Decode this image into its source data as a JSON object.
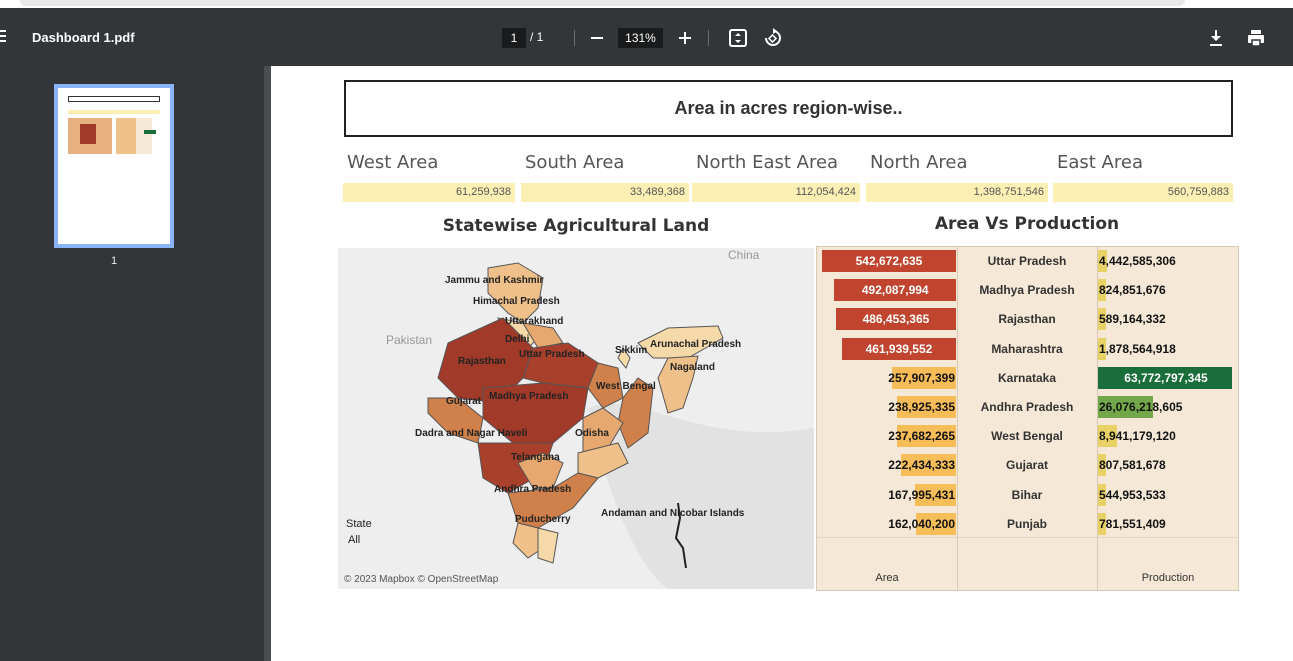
{
  "toolbar": {
    "title": "Dashboard 1.pdf",
    "page_current": "1",
    "page_total": "/  1",
    "zoom": "131%",
    "zoom_out_icon": "minus-icon",
    "zoom_in_icon": "plus-icon",
    "fit_icon": "fit-page-icon",
    "rotate_icon": "rotate-icon",
    "download_icon": "download-icon",
    "print_icon": "print-icon"
  },
  "sidebar": {
    "thumbnail_label": "1"
  },
  "dashboard": {
    "heading": "Area in acres region-wise..",
    "regions": [
      {
        "name": "West Area",
        "value": "61,259,938"
      },
      {
        "name": "South Area",
        "value": "33,489,368"
      },
      {
        "name": "North East Area",
        "value": "112,054,424"
      },
      {
        "name": "North Area",
        "value": "1,398,751,546"
      },
      {
        "name": "East Area",
        "value": "560,759,883"
      }
    ],
    "map": {
      "title": "Statewise Agricultural Land",
      "labels": {
        "jk": "Jammu and Kashmir",
        "hp": "Himachal Pradesh",
        "uk": "Uttarakhand",
        "delhi": "Delhi",
        "raj": "Rajasthan",
        "up": "Uttar Pradesh",
        "sikkim": "Sikkim",
        "ap_arunachal": "Arunachal Pradesh",
        "nagaland": "Nagaland",
        "wb": "West Bengal",
        "guj": "Gujarat",
        "mp": "Madhya Pradesh",
        "dnh": "Dadra and Nagar Haveli",
        "odisha": "Odisha",
        "tel": "Telangana",
        "ap": "Andhra Pradesh",
        "pud": "Puducherry",
        "anda": "Andaman and Nicobar Islands"
      },
      "bg_labels": {
        "china": "China",
        "pakistan": "Pakistan"
      },
      "legend_title": "State",
      "legend_value": "All",
      "credit": "© 2023 Mapbox © OpenStreetMap",
      "colors": {
        "high": "#a23a2a",
        "mid": "#d0804a",
        "low": "#f0c08a",
        "lowest": "#f6d9a8"
      }
    }
  },
  "chart_data": {
    "type": "bar",
    "title": "Area  Vs Production",
    "categories": [
      "Uttar Pradesh",
      "Madhya Pradesh",
      "Rajasthan",
      "Maharashtra",
      "Karnataka",
      "Andhra Pradesh",
      "West Bengal",
      "Gujarat",
      "Bihar",
      "Punjab"
    ],
    "series": [
      {
        "name": "Area",
        "values": [
          542672635,
          492087994,
          486453365,
          461939552,
          257907399,
          238925335,
          237682265,
          222434333,
          167995431,
          162040200
        ],
        "labels": [
          "542,672,635",
          "492,087,994",
          "486,453,365",
          "461,939,552",
          "257,907,399",
          "238,925,335",
          "237,682,265",
          "222,434,333",
          "167,995,431",
          "162,040,200"
        ]
      },
      {
        "name": "Production",
        "values": [
          4442585306,
          824851676,
          589164332,
          1878564918,
          63772797345,
          26076218605,
          8941179120,
          807581678,
          544953533,
          781551409
        ],
        "labels": [
          "4,442,585,306",
          "824,851,676",
          "589,164,332",
          "1,878,564,918",
          "63,772,797,345",
          "26,076,218,605",
          "8,941,179,120",
          "807,581,678",
          "544,953,533",
          "781,551,409"
        ]
      }
    ],
    "xlabel_area": "Area",
    "xlabel_production": "Production",
    "colors": {
      "area_high": "#c0442e",
      "area_low": "#f4b556",
      "prod_high": "#1a6e3a",
      "prod_mid": "#72a84a",
      "prod_low": "#e8d266"
    }
  }
}
